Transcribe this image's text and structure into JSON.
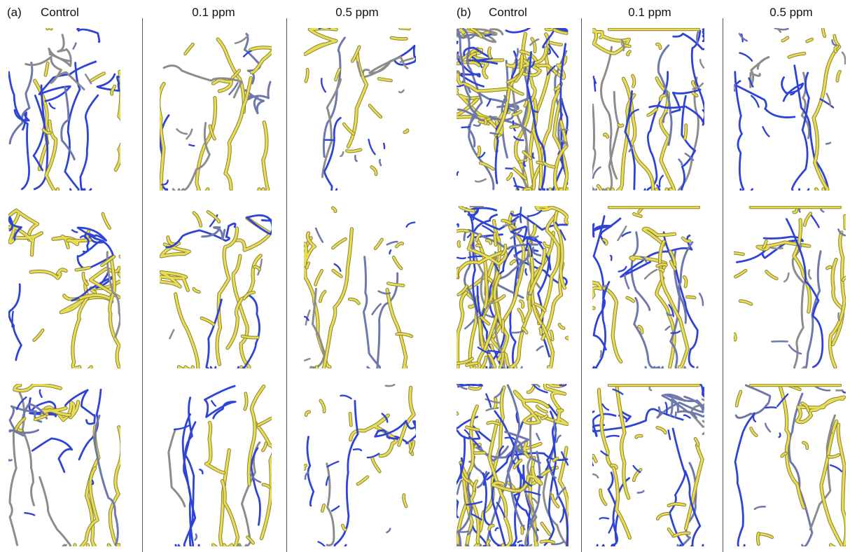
{
  "panels": [
    {
      "letter": "(a)",
      "columns": [
        "Control",
        "0.1 ppm",
        "0.5 ppm"
      ]
    },
    {
      "letter": "(b)",
      "columns": [
        "Control",
        "0.1 ppm",
        "0.5 ppm"
      ]
    }
  ],
  "colors": {
    "yellow_root": "#e6dc55",
    "yellow_edge": "#8c8230",
    "blue_root": "#2f43d6",
    "slate_root": "#6f78ad",
    "gray_root": "#8c8c8c",
    "divider": "#555555"
  }
}
